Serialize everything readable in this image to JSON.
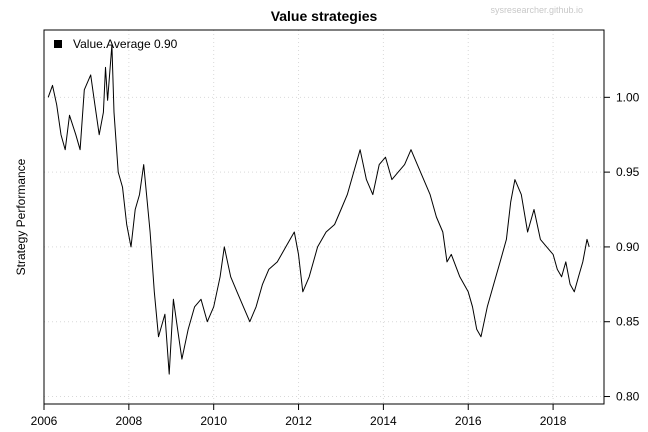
{
  "watermark": "sysresearcher.github.io",
  "chart_data": {
    "type": "line",
    "title": "Value strategies",
    "xlabel": "",
    "ylabel": "Strategy Performance",
    "xlim": [
      2006,
      2019.2
    ],
    "ylim": [
      0.795,
      1.045
    ],
    "x_ticks": [
      2006,
      2008,
      2010,
      2012,
      2014,
      2016,
      2018
    ],
    "x_tick_labels": [
      "2006",
      "2008",
      "2010",
      "2012",
      "2014",
      "2016",
      "2018"
    ],
    "y_ticks": [
      0.8,
      0.85,
      0.9,
      0.95,
      1.0
    ],
    "y_tick_labels": [
      "0.80",
      "0.85",
      "0.90",
      "0.95",
      "1.00"
    ],
    "y_axis_side": "right",
    "grid": true,
    "legend": {
      "position": "top-left",
      "entries": [
        "Value.Average 0.90"
      ]
    },
    "series": [
      {
        "name": "Value.Average 0.90",
        "color": "#000000",
        "x": [
          2006.1,
          2006.2,
          2006.3,
          2006.4,
          2006.5,
          2006.6,
          2006.75,
          2006.85,
          2006.95,
          2007.1,
          2007.2,
          2007.3,
          2007.4,
          2007.45,
          2007.5,
          2007.6,
          2007.65,
          2007.75,
          2007.85,
          2007.95,
          2008.05,
          2008.15,
          2008.25,
          2008.35,
          2008.5,
          2008.6,
          2008.7,
          2008.85,
          2008.95,
          2009.05,
          2009.15,
          2009.25,
          2009.4,
          2009.55,
          2009.7,
          2009.85,
          2010.0,
          2010.15,
          2010.25,
          2010.4,
          2010.55,
          2010.7,
          2010.85,
          2011.0,
          2011.15,
          2011.3,
          2011.5,
          2011.7,
          2011.9,
          2012.0,
          2012.1,
          2012.25,
          2012.45,
          2012.65,
          2012.85,
          2013.0,
          2013.15,
          2013.3,
          2013.45,
          2013.6,
          2013.75,
          2013.9,
          2014.05,
          2014.2,
          2014.35,
          2014.5,
          2014.65,
          2014.8,
          2014.95,
          2015.1,
          2015.25,
          2015.4,
          2015.5,
          2015.6,
          2015.8,
          2016.0,
          2016.1,
          2016.2,
          2016.3,
          2016.45,
          2016.6,
          2016.75,
          2016.9,
          2017.0,
          2017.1,
          2017.25,
          2017.4,
          2017.55,
          2017.7,
          2017.85,
          2018.0,
          2018.1,
          2018.2,
          2018.3,
          2018.4,
          2018.5,
          2018.6,
          2018.7,
          2018.8,
          2018.85
        ],
        "values": [
          1.0,
          1.008,
          0.995,
          0.975,
          0.965,
          0.988,
          0.975,
          0.965,
          1.005,
          1.015,
          0.995,
          0.975,
          0.99,
          1.02,
          0.998,
          1.035,
          0.99,
          0.95,
          0.94,
          0.915,
          0.9,
          0.925,
          0.935,
          0.955,
          0.91,
          0.87,
          0.84,
          0.855,
          0.815,
          0.865,
          0.845,
          0.825,
          0.845,
          0.86,
          0.865,
          0.85,
          0.86,
          0.88,
          0.9,
          0.88,
          0.87,
          0.86,
          0.85,
          0.86,
          0.875,
          0.885,
          0.89,
          0.9,
          0.91,
          0.895,
          0.87,
          0.88,
          0.9,
          0.91,
          0.915,
          0.925,
          0.935,
          0.95,
          0.965,
          0.945,
          0.935,
          0.955,
          0.96,
          0.945,
          0.95,
          0.955,
          0.965,
          0.955,
          0.945,
          0.935,
          0.92,
          0.91,
          0.89,
          0.895,
          0.88,
          0.87,
          0.86,
          0.845,
          0.84,
          0.86,
          0.875,
          0.89,
          0.905,
          0.93,
          0.945,
          0.935,
          0.91,
          0.925,
          0.905,
          0.9,
          0.895,
          0.885,
          0.88,
          0.89,
          0.875,
          0.87,
          0.88,
          0.89,
          0.905,
          0.9
        ]
      }
    ]
  }
}
